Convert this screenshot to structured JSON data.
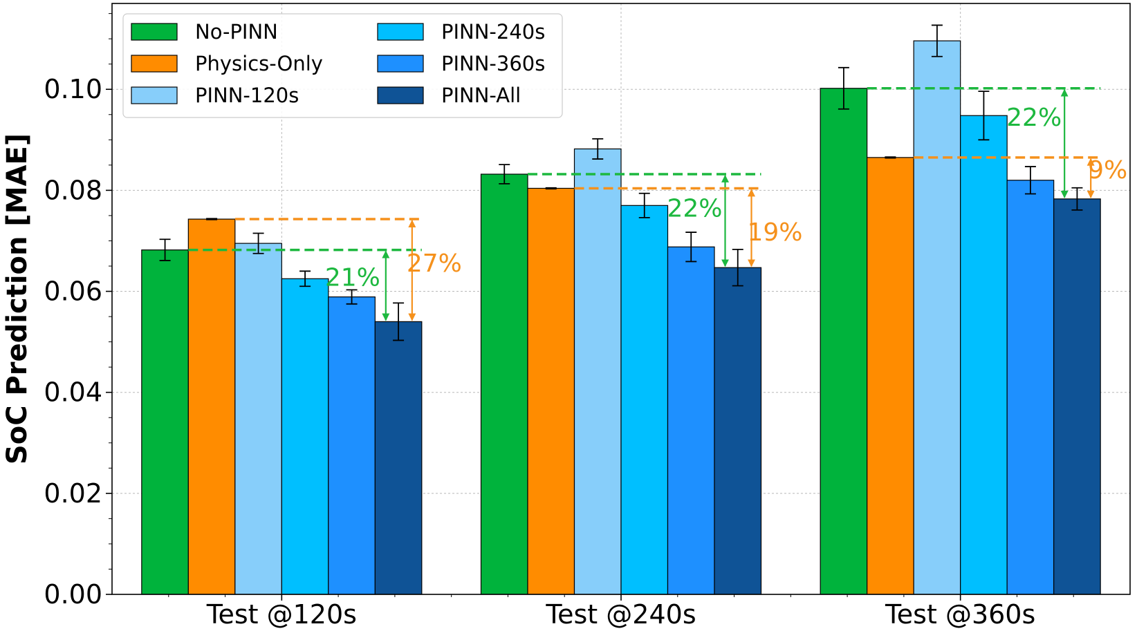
{
  "chart_data": {
    "type": "bar",
    "title": "",
    "xlabel": "",
    "ylabel": "SoC Prediction [MAE]",
    "ylim": [
      0,
      0.117
    ],
    "yticks": [
      "0.00",
      "0.02",
      "0.04",
      "0.06",
      "0.08",
      "0.10"
    ],
    "grid": true,
    "legend_position": "top-left",
    "categories": [
      "Test @120s",
      "Test @240s",
      "Test @360s"
    ],
    "series": [
      {
        "name": "No-PINN",
        "color": "#00b33c",
        "values": [
          0.0682,
          0.0832,
          0.1002
        ],
        "errors": [
          0.0021,
          0.0019,
          0.0041
        ]
      },
      {
        "name": "Physics-Only",
        "color": "#ff8c00",
        "values": [
          0.0743,
          0.0804,
          0.0865
        ],
        "errors": [
          0.0001,
          0.0001,
          0.0001
        ]
      },
      {
        "name": "PINN-120s",
        "color": "#87cefa",
        "values": [
          0.0695,
          0.0882,
          0.1096
        ],
        "errors": [
          0.002,
          0.002,
          0.0031
        ]
      },
      {
        "name": "PINN-240s",
        "color": "#00bfff",
        "values": [
          0.0625,
          0.077,
          0.0948
        ],
        "errors": [
          0.0015,
          0.0024,
          0.0048
        ]
      },
      {
        "name": "PINN-360s",
        "color": "#1e90ff",
        "values": [
          0.0589,
          0.0688,
          0.082
        ],
        "errors": [
          0.0014,
          0.0029,
          0.0027
        ]
      },
      {
        "name": "PINN-All",
        "color": "#0f5396",
        "values": [
          0.054,
          0.0647,
          0.0783
        ],
        "errors": [
          0.0037,
          0.0036,
          0.0022
        ]
      }
    ],
    "annotations": [
      {
        "category": "Test @120s",
        "text": "21%",
        "color": "#1db83f",
        "ref_series": "No-PINN",
        "to_value": 0.054
      },
      {
        "category": "Test @120s",
        "text": "27%",
        "color": "#f5911c",
        "ref_series": "Physics-Only",
        "to_value": 0.054
      },
      {
        "category": "Test @240s",
        "text": "22%",
        "color": "#1db83f",
        "ref_series": "No-PINN",
        "to_value": 0.0647
      },
      {
        "category": "Test @240s",
        "text": "19%",
        "color": "#f5911c",
        "ref_series": "Physics-Only",
        "to_value": 0.0647
      },
      {
        "category": "Test @360s",
        "text": "22%",
        "color": "#1db83f",
        "ref_series": "No-PINN",
        "to_value": 0.0783
      },
      {
        "category": "Test @360s",
        "text": "9%",
        "color": "#f5911c",
        "ref_series": "Physics-Only",
        "to_value": 0.0783
      }
    ]
  }
}
